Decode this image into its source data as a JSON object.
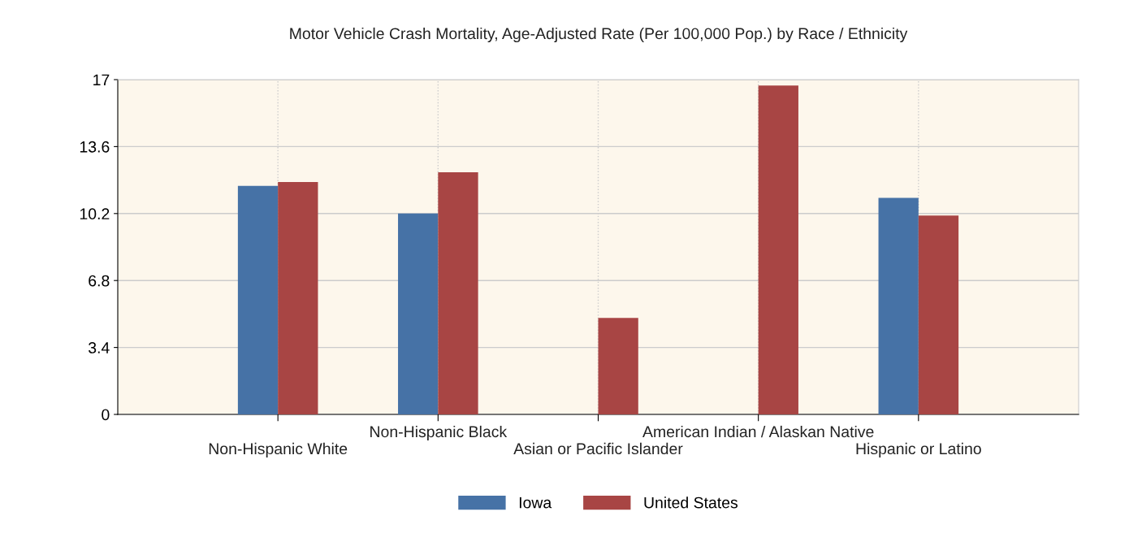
{
  "chart_data": {
    "type": "bar",
    "title": "Motor Vehicle Crash Mortality, Age-Adjusted Rate (Per 100,000 Pop.) by Race / Ethnicity",
    "categories": [
      "Non-Hispanic White",
      "Non-Hispanic Black",
      "Asian or Pacific Islander",
      "American Indian / Alaskan Native",
      "Hispanic or Latino"
    ],
    "series": [
      {
        "name": "Iowa",
        "color": "#4672a6",
        "values": [
          11.6,
          10.2,
          null,
          null,
          11.0
        ]
      },
      {
        "name": "United States",
        "color": "#a84544",
        "values": [
          11.8,
          12.3,
          4.9,
          16.7,
          10.1
        ]
      }
    ],
    "ylim": [
      0,
      17
    ],
    "yticks": [
      0,
      3.4,
      6.8,
      10.2,
      13.6,
      17
    ],
    "grid": true,
    "legend": "bottom"
  }
}
